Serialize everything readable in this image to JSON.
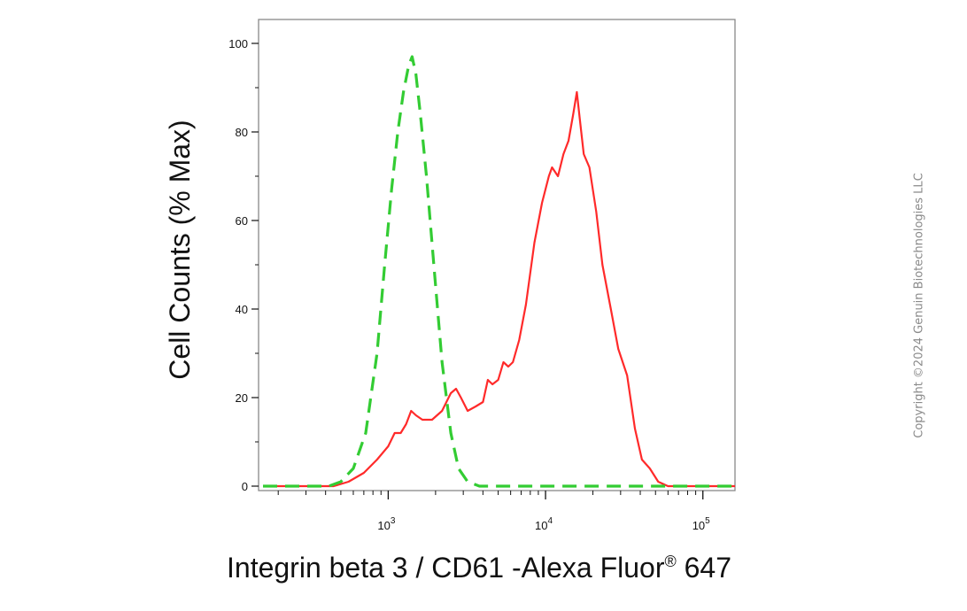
{
  "chart_data": {
    "type": "line",
    "title": "",
    "xlabel": "Integrin beta 3 / CD61 -Alexa Fluor",
    "xlabel_superscript": "®",
    "xlabel_suffix": " 647",
    "ylabel": "Cell Counts (% Max)",
    "xscale": "log",
    "xlim": [
      150,
      160000
    ],
    "ylim": [
      0,
      105
    ],
    "x_ticks": [
      {
        "base": "10",
        "exp": "3",
        "value": 1000
      },
      {
        "base": "10",
        "exp": "4",
        "value": 10000
      },
      {
        "base": "10",
        "exp": "5",
        "value": 100000
      }
    ],
    "y_ticks": [
      "0",
      "20",
      "40",
      "60",
      "80",
      "100"
    ],
    "grid": false,
    "legend": "none",
    "series": [
      {
        "color": "#ff2a2a",
        "style": "solid",
        "points": [
          [
            160,
            0
          ],
          [
            300,
            0
          ],
          [
            450,
            0
          ],
          [
            560,
            1
          ],
          [
            700,
            3
          ],
          [
            850,
            6
          ],
          [
            1000,
            9
          ],
          [
            1100,
            12
          ],
          [
            1200,
            12
          ],
          [
            1300,
            14
          ],
          [
            1400,
            17
          ],
          [
            1500,
            16
          ],
          [
            1650,
            15
          ],
          [
            1900,
            15
          ],
          [
            2200,
            17
          ],
          [
            2500,
            21
          ],
          [
            2700,
            22
          ],
          [
            2900,
            20
          ],
          [
            3200,
            17
          ],
          [
            3600,
            18
          ],
          [
            4000,
            19
          ],
          [
            4300,
            24
          ],
          [
            4600,
            23
          ],
          [
            5000,
            24
          ],
          [
            5400,
            28
          ],
          [
            5800,
            27
          ],
          [
            6200,
            28
          ],
          [
            6800,
            33
          ],
          [
            7500,
            41
          ],
          [
            8500,
            55
          ],
          [
            9500,
            64
          ],
          [
            10500,
            70
          ],
          [
            11000,
            72
          ],
          [
            12000,
            70
          ],
          [
            13000,
            75
          ],
          [
            14000,
            78
          ],
          [
            15000,
            84
          ],
          [
            15800,
            89
          ],
          [
            16500,
            83
          ],
          [
            17500,
            75
          ],
          [
            19000,
            72
          ],
          [
            21000,
            62
          ],
          [
            23000,
            50
          ],
          [
            26000,
            40
          ],
          [
            29000,
            31
          ],
          [
            33000,
            25
          ],
          [
            37000,
            13
          ],
          [
            41000,
            6
          ],
          [
            46000,
            4
          ],
          [
            52000,
            1
          ],
          [
            60000,
            0
          ],
          [
            80000,
            0
          ],
          [
            160000,
            0
          ]
        ]
      },
      {
        "color": "#33cc33",
        "style": "dashed",
        "points": [
          [
            160,
            0
          ],
          [
            420,
            0
          ],
          [
            500,
            1
          ],
          [
            600,
            4
          ],
          [
            720,
            12
          ],
          [
            850,
            30
          ],
          [
            950,
            50
          ],
          [
            1050,
            67
          ],
          [
            1150,
            80
          ],
          [
            1250,
            89
          ],
          [
            1350,
            95
          ],
          [
            1420,
            97
          ],
          [
            1500,
            93
          ],
          [
            1600,
            84
          ],
          [
            1750,
            70
          ],
          [
            1950,
            50
          ],
          [
            2200,
            28
          ],
          [
            2500,
            12
          ],
          [
            2800,
            4
          ],
          [
            3200,
            1
          ],
          [
            3800,
            0
          ],
          [
            160000,
            0
          ]
        ]
      }
    ]
  },
  "copyright": "Copyright ©2024 Genuin Biotechnologies LLC"
}
